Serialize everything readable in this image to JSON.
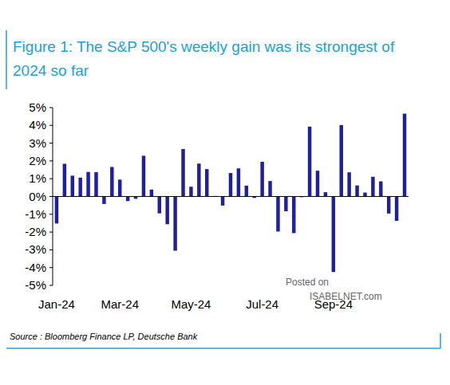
{
  "chart_data": {
    "type": "bar",
    "title": "Figure 1: The S&P 500's weekly gain was its strongest of 2024 so far",
    "source": "Source : Bloomberg Finance LP, Deutsche Bank",
    "watermark": [
      "Posted on",
      "ISABELNET.com"
    ],
    "categories": [
      "Jan-24",
      null,
      null,
      null,
      null,
      null,
      null,
      null,
      "Mar-24",
      null,
      null,
      null,
      null,
      null,
      null,
      null,
      null,
      "May-24",
      null,
      null,
      null,
      null,
      null,
      null,
      null,
      null,
      "Jul-24",
      null,
      null,
      null,
      null,
      null,
      null,
      null,
      null,
      "Sep-24",
      null,
      null,
      null,
      null,
      null,
      null,
      null,
      null,
      null
    ],
    "values": [
      -1.52,
      1.84,
      1.17,
      1.06,
      1.38,
      1.37,
      -0.42,
      1.66,
      0.95,
      -0.26,
      -0.13,
      2.29,
      0.39,
      -0.95,
      -1.56,
      -3.05,
      2.67,
      0.55,
      1.85,
      1.54,
      0.03,
      -0.51,
      1.32,
      1.58,
      0.61,
      -0.08,
      1.95,
      0.87,
      -1.97,
      -0.83,
      -2.06,
      -0.04,
      3.93,
      1.45,
      0.24,
      -4.25,
      4.02,
      1.36,
      0.62,
      0.22,
      1.11,
      0.85,
      -0.96,
      -1.37,
      4.66
    ],
    "color": "#1f1fa3",
    "ylim": [
      -5,
      5
    ],
    "yticks": [
      {
        "value": -5,
        "label": "-5%"
      },
      {
        "value": -4,
        "label": "-4%"
      },
      {
        "value": -3,
        "label": "-3%"
      },
      {
        "value": -2,
        "label": "-2%"
      },
      {
        "value": -1,
        "label": "-1%"
      },
      {
        "value": 0,
        "label": "0%"
      },
      {
        "value": 1,
        "label": "1%"
      },
      {
        "value": 2,
        "label": "2%"
      },
      {
        "value": 3,
        "label": "3%"
      },
      {
        "value": 4,
        "label": "4%"
      },
      {
        "value": 5,
        "label": "5%"
      }
    ],
    "grid": false
  }
}
